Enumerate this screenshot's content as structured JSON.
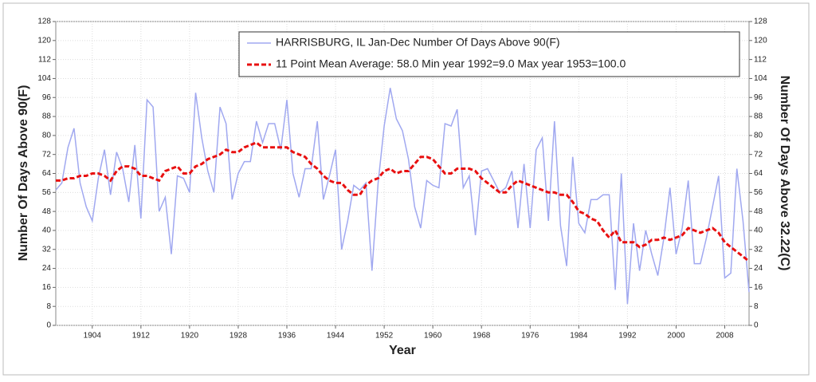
{
  "chart_data": {
    "type": "line",
    "xlabel": "Year",
    "ylabel": "Number Of Days Above 90(F)",
    "y2label": "Number Of Days Above 32.22(C)",
    "x": [
      1898,
      1899,
      1900,
      1901,
      1902,
      1903,
      1904,
      1905,
      1906,
      1907,
      1908,
      1909,
      1910,
      1911,
      1912,
      1913,
      1914,
      1915,
      1916,
      1917,
      1918,
      1919,
      1920,
      1921,
      1922,
      1923,
      1924,
      1925,
      1926,
      1927,
      1928,
      1929,
      1930,
      1931,
      1932,
      1933,
      1934,
      1935,
      1936,
      1937,
      1938,
      1939,
      1940,
      1941,
      1942,
      1943,
      1944,
      1945,
      1946,
      1947,
      1948,
      1949,
      1950,
      1951,
      1952,
      1953,
      1954,
      1955,
      1956,
      1957,
      1958,
      1959,
      1960,
      1961,
      1962,
      1963,
      1964,
      1965,
      1966,
      1967,
      1968,
      1969,
      1970,
      1971,
      1972,
      1973,
      1974,
      1975,
      1976,
      1977,
      1978,
      1979,
      1980,
      1981,
      1982,
      1983,
      1984,
      1985,
      1986,
      1987,
      1988,
      1989,
      1990,
      1991,
      1992,
      1993,
      1994,
      1995,
      1996,
      1997,
      1998,
      1999,
      2000,
      2001,
      2002,
      2003,
      2004,
      2005,
      2006,
      2007,
      2008,
      2009,
      2010,
      2011,
      2012
    ],
    "series": [
      {
        "name": "HARRISBURG, IL  Jan-Dec  Number Of Days Above 90(F)",
        "color": "#a0a8f0",
        "style": "solid",
        "values": [
          57,
          60,
          75,
          83,
          60,
          50,
          44,
          62,
          74,
          55,
          73,
          66,
          52,
          76,
          45,
          95,
          92,
          48,
          54,
          30,
          63,
          62,
          56,
          98,
          79,
          65,
          56,
          92,
          85,
          53,
          64,
          69,
          69,
          86,
          77,
          85,
          85,
          74,
          95,
          64,
          54,
          66,
          66,
          86,
          53,
          63,
          74,
          32,
          44,
          59,
          57,
          60,
          23,
          60,
          84,
          100,
          87,
          82,
          70,
          50,
          41,
          61,
          59,
          58,
          85,
          84,
          91,
          58,
          63,
          38,
          65,
          66,
          61,
          56,
          58,
          65,
          41,
          68,
          41,
          74,
          79,
          44,
          86,
          42,
          25,
          71,
          43,
          39,
          53,
          53,
          55,
          55,
          15,
          64,
          9,
          43,
          23,
          40,
          30,
          21,
          37,
          58,
          30,
          41,
          61,
          26,
          26,
          37,
          50,
          63,
          20,
          22,
          66,
          44,
          14
        ]
      },
      {
        "name": "11 Point Mean  Average: 58.0  Min year 1992=9.0  Max year 1953=100.0",
        "color": "#e81010",
        "style": "dashed",
        "values": [
          61,
          61,
          62,
          62,
          63,
          63,
          64,
          64,
          63,
          61,
          65,
          67,
          67,
          66,
          63,
          63,
          62,
          61,
          65,
          66,
          67,
          64,
          64,
          67,
          68,
          70,
          71,
          72,
          74,
          73,
          73,
          75,
          76,
          77,
          75,
          75,
          75,
          75,
          75,
          73,
          72,
          71,
          68,
          66,
          63,
          61,
          60,
          60,
          57,
          55,
          55,
          59,
          61,
          62,
          65,
          66,
          64,
          65,
          65,
          68,
          71,
          71,
          70,
          67,
          64,
          64,
          66,
          66,
          66,
          65,
          62,
          60,
          58,
          56,
          56,
          59,
          61,
          60,
          59,
          58,
          57,
          56,
          56,
          55,
          55,
          52,
          48,
          47,
          45,
          44,
          40,
          37,
          40,
          35,
          35,
          35,
          33,
          34,
          36,
          36,
          37,
          36,
          37,
          38,
          41,
          40,
          39,
          40,
          41,
          39,
          35,
          33,
          31,
          29,
          27
        ]
      }
    ],
    "xlim": [
      1898,
      2012
    ],
    "xticks": [
      1904,
      1912,
      1920,
      1928,
      1936,
      1944,
      1952,
      1960,
      1968,
      1976,
      1984,
      1992,
      2000,
      2008
    ],
    "ylim": [
      0,
      128
    ],
    "yticks": [
      0,
      8,
      16,
      24,
      32,
      40,
      48,
      56,
      64,
      72,
      80,
      88,
      96,
      104,
      112,
      120,
      128
    ],
    "y2lim": [
      0,
      128
    ],
    "y2ticks": [
      0,
      8,
      16,
      24,
      32,
      40,
      48,
      56,
      64,
      72,
      80,
      88,
      96,
      104,
      112,
      120,
      128
    ],
    "grid": true,
    "legend": "upper right"
  }
}
